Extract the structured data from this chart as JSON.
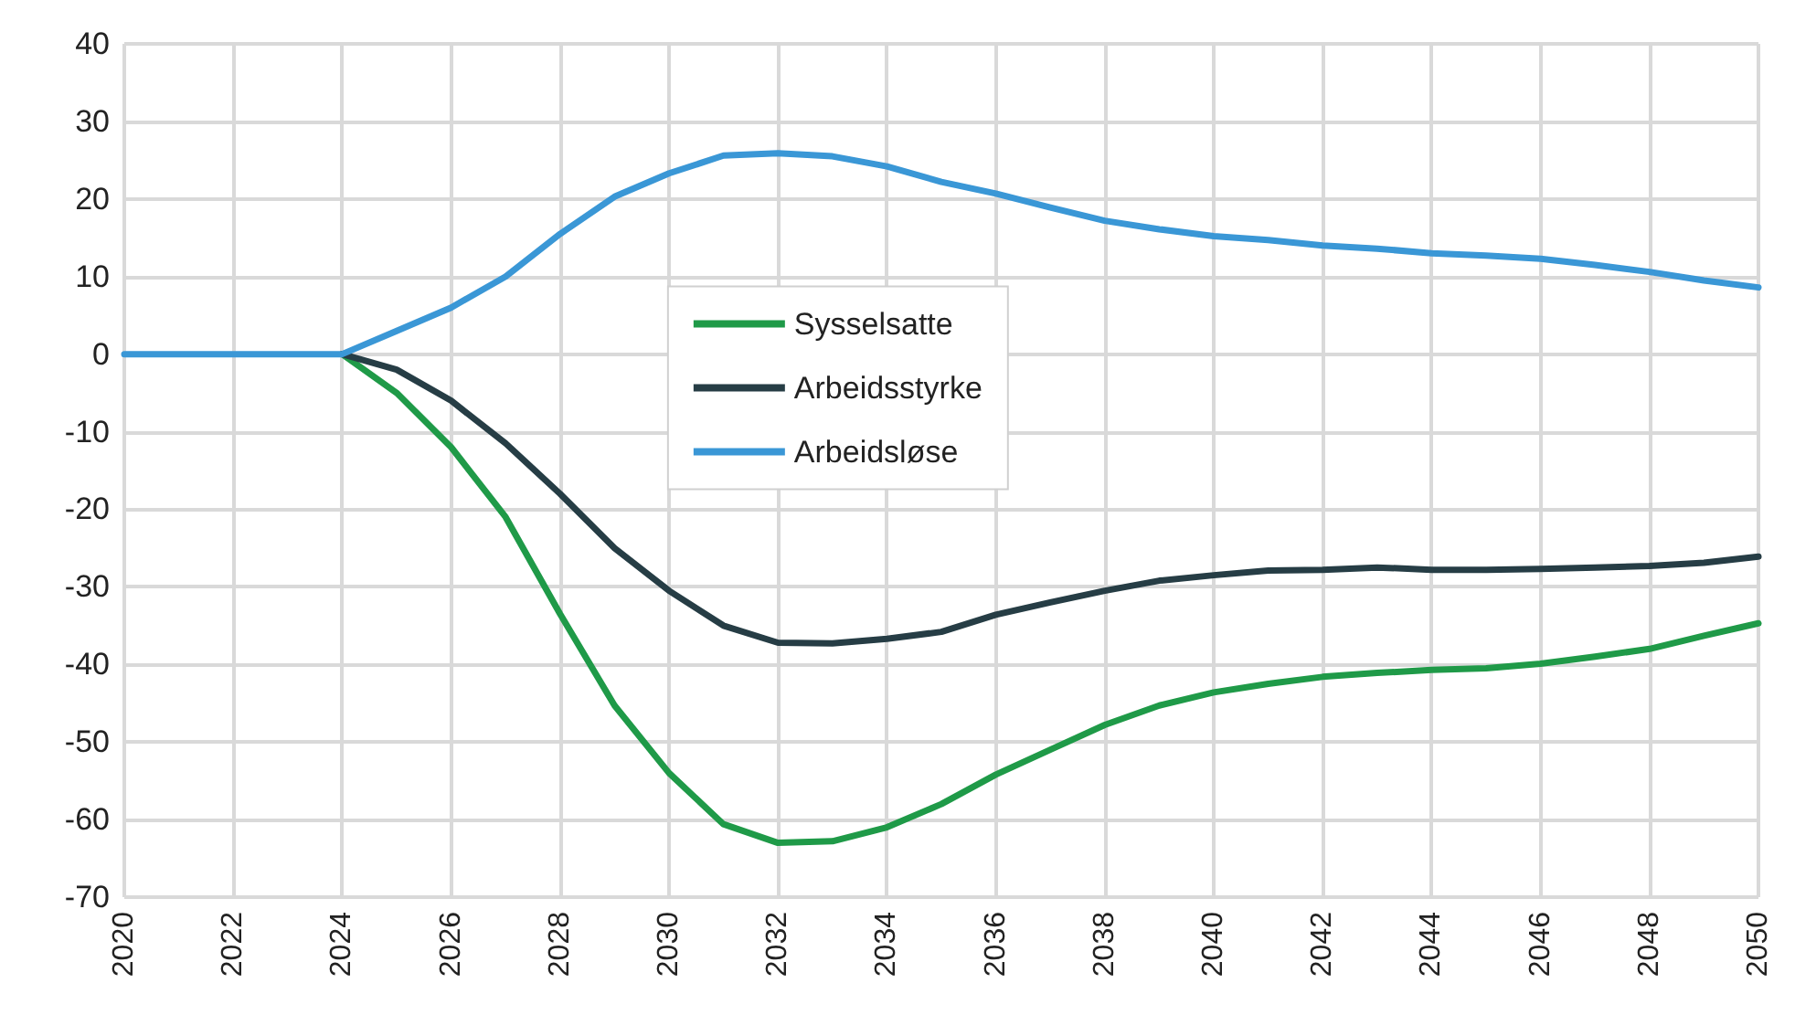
{
  "chart_data": {
    "type": "line",
    "x": [
      2020,
      2021,
      2022,
      2023,
      2024,
      2025,
      2026,
      2027,
      2028,
      2029,
      2030,
      2031,
      2032,
      2033,
      2034,
      2035,
      2036,
      2037,
      2038,
      2039,
      2040,
      2041,
      2042,
      2043,
      2044,
      2045,
      2046,
      2047,
      2048,
      2049,
      2050
    ],
    "series": [
      {
        "name": "Sysselsatte",
        "color": "#1f9a48",
        "values": [
          null,
          null,
          null,
          null,
          0,
          -5,
          -12,
          -21,
          -33.5,
          -45.3,
          -54,
          -60.6,
          -63,
          -62.8,
          -61,
          -58,
          -54.2,
          -51,
          -47.8,
          -45.3,
          -43.6,
          -42.5,
          -41.6,
          -41.1,
          -40.7,
          -40.5,
          -39.9,
          -39,
          -38,
          -36.3,
          -34.7
        ]
      },
      {
        "name": "Arbeidsstyrke",
        "color": "#263d45",
        "values": [
          null,
          null,
          null,
          null,
          0,
          -2,
          -6,
          -11.5,
          -18,
          -25,
          -30.5,
          -35,
          -37.2,
          -37.3,
          -36.7,
          -35.8,
          -33.6,
          -32,
          -30.5,
          -29.2,
          -28.5,
          -27.9,
          -27.8,
          -27.5,
          -27.8,
          -27.8,
          -27.7,
          -27.5,
          -27.3,
          -26.9,
          -26.1
        ]
      },
      {
        "name": "Arbeidsløse",
        "color": "#3a97d6",
        "values": [
          0,
          0,
          0,
          0,
          0,
          3,
          6,
          10,
          15.5,
          20.3,
          23.3,
          25.6,
          25.9,
          25.5,
          24.2,
          22.2,
          20.7,
          18.9,
          17.2,
          16.1,
          15.2,
          14.7,
          14,
          13.6,
          13,
          12.7,
          12.3,
          11.5,
          10.6,
          9.5,
          8.6
        ]
      }
    ],
    "xlim": [
      2020,
      2050
    ],
    "xticks": [
      2020,
      2022,
      2024,
      2026,
      2028,
      2030,
      2032,
      2034,
      2036,
      2038,
      2040,
      2042,
      2044,
      2046,
      2048,
      2050
    ],
    "ylim": [
      -70,
      40
    ],
    "yticks": [
      -70,
      -60,
      -50,
      -40,
      -30,
      -20,
      -10,
      0,
      10,
      20,
      30,
      40
    ],
    "grid": true,
    "legend": "center",
    "marker": "none",
    "line_style": "solid"
  }
}
